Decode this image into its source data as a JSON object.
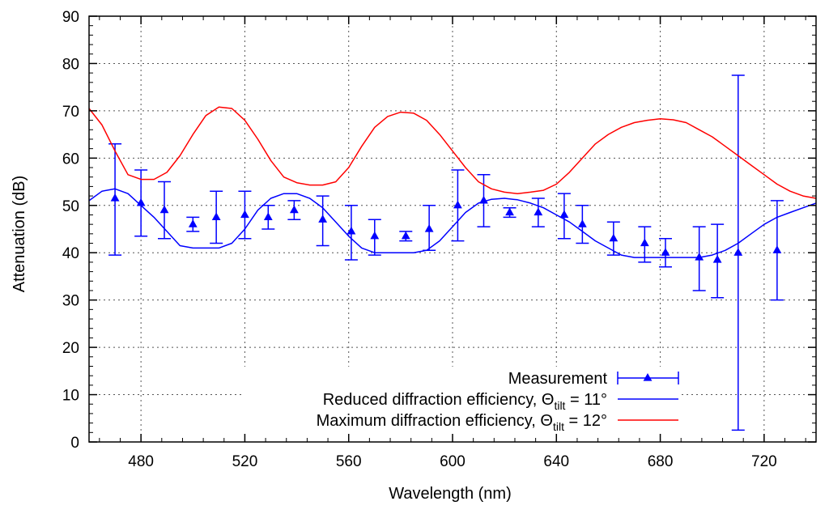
{
  "chart_data": {
    "type": "line",
    "title": "",
    "xlabel": "Wavelength (nm)",
    "ylabel": "Attenuation (dB)",
    "xlim": [
      460,
      740
    ],
    "ylim": [
      0,
      90
    ],
    "x_ticks": [
      480,
      520,
      560,
      600,
      640,
      680,
      720
    ],
    "y_ticks": [
      0,
      10,
      20,
      30,
      40,
      50,
      60,
      70,
      80,
      90
    ],
    "grid": true,
    "legend_position": "bottom-right",
    "series": [
      {
        "name": "Measurement",
        "kind": "errorbar",
        "color": "#0000ff",
        "marker": "triangle",
        "points": [
          {
            "x": 470,
            "y": 51.5,
            "low": 39.5,
            "high": 63.0
          },
          {
            "x": 480,
            "y": 50.5,
            "low": 43.5,
            "high": 57.5
          },
          {
            "x": 489,
            "y": 49.0,
            "low": 43.0,
            "high": 55.0
          },
          {
            "x": 500,
            "y": 46.0,
            "low": 44.5,
            "high": 47.5
          },
          {
            "x": 509,
            "y": 47.5,
            "low": 42.0,
            "high": 53.0
          },
          {
            "x": 520,
            "y": 48.0,
            "low": 43.0,
            "high": 53.0
          },
          {
            "x": 529,
            "y": 47.5,
            "low": 45.0,
            "high": 50.0
          },
          {
            "x": 539,
            "y": 49.0,
            "low": 47.0,
            "high": 51.0
          },
          {
            "x": 550,
            "y": 47.0,
            "low": 41.5,
            "high": 52.0
          },
          {
            "x": 561,
            "y": 44.5,
            "low": 38.5,
            "high": 50.0
          },
          {
            "x": 570,
            "y": 43.5,
            "low": 39.5,
            "high": 47.0
          },
          {
            "x": 582,
            "y": 43.5,
            "low": 42.5,
            "high": 44.5
          },
          {
            "x": 591,
            "y": 45.0,
            "low": 40.5,
            "high": 50.0
          },
          {
            "x": 602,
            "y": 50.0,
            "low": 42.5,
            "high": 57.5
          },
          {
            "x": 612,
            "y": 51.0,
            "low": 45.5,
            "high": 56.5
          },
          {
            "x": 622,
            "y": 48.5,
            "low": 47.5,
            "high": 49.5
          },
          {
            "x": 633,
            "y": 48.5,
            "low": 45.5,
            "high": 51.5
          },
          {
            "x": 643,
            "y": 48.0,
            "low": 43.0,
            "high": 52.5
          },
          {
            "x": 650,
            "y": 46.0,
            "low": 42.0,
            "high": 50.0
          },
          {
            "x": 662,
            "y": 43.0,
            "low": 39.5,
            "high": 46.5
          },
          {
            "x": 674,
            "y": 42.0,
            "low": 38.0,
            "high": 45.5
          },
          {
            "x": 682,
            "y": 40.0,
            "low": 37.0,
            "high": 43.0
          },
          {
            "x": 695,
            "y": 39.0,
            "low": 32.0,
            "high": 45.5
          },
          {
            "x": 702,
            "y": 38.5,
            "low": 30.5,
            "high": 46.0
          },
          {
            "x": 710,
            "y": 40.0,
            "low": 2.5,
            "high": 77.5
          },
          {
            "x": 725,
            "y": 40.5,
            "low": 30.0,
            "high": 51.0
          }
        ]
      },
      {
        "name": "Reduced diffraction efficiency, Θtilt = 11°",
        "kind": "line",
        "color": "#0000ff",
        "x": [
          460,
          465,
          470,
          475,
          480,
          485,
          490,
          495,
          500,
          505,
          510,
          515,
          520,
          525,
          530,
          535,
          540,
          545,
          550,
          555,
          560,
          565,
          570,
          575,
          580,
          585,
          590,
          595,
          600,
          605,
          610,
          615,
          620,
          625,
          630,
          635,
          640,
          645,
          650,
          655,
          660,
          665,
          670,
          675,
          680,
          685,
          690,
          695,
          700,
          705,
          710,
          715,
          720,
          725,
          730,
          735,
          740
        ],
        "y": [
          51.0,
          53.0,
          53.5,
          52.5,
          50.0,
          47.5,
          44.5,
          41.5,
          41.0,
          41.0,
          41.0,
          42.0,
          45.0,
          49.0,
          51.5,
          52.5,
          52.5,
          51.5,
          49.5,
          46.5,
          43.5,
          41.0,
          40.0,
          40.0,
          40.0,
          40.0,
          40.5,
          42.5,
          45.5,
          48.5,
          50.5,
          51.3,
          51.5,
          51.2,
          50.5,
          49.5,
          48.0,
          46.5,
          44.5,
          42.5,
          41.0,
          39.5,
          39.0,
          39.0,
          39.0,
          39.0,
          39.0,
          39.0,
          39.5,
          40.5,
          42.0,
          44.0,
          46.0,
          47.5,
          48.5,
          49.5,
          50.5
        ]
      },
      {
        "name": "Maximum diffraction efficiency, Θtilt = 12°",
        "kind": "line",
        "color": "#ff0000",
        "x": [
          460,
          465,
          470,
          475,
          480,
          485,
          490,
          495,
          500,
          505,
          510,
          515,
          520,
          525,
          530,
          535,
          540,
          545,
          550,
          555,
          560,
          565,
          570,
          575,
          580,
          585,
          590,
          595,
          600,
          605,
          610,
          615,
          620,
          625,
          630,
          635,
          640,
          645,
          650,
          655,
          660,
          665,
          670,
          675,
          680,
          685,
          690,
          695,
          700,
          705,
          710,
          715,
          720,
          725,
          730,
          735,
          740
        ],
        "y": [
          70.5,
          67.0,
          61.5,
          56.5,
          55.5,
          55.5,
          57.0,
          60.5,
          65.0,
          69.0,
          70.8,
          70.5,
          68.0,
          64.0,
          59.5,
          56.0,
          54.8,
          54.3,
          54.3,
          55.0,
          58.0,
          62.5,
          66.5,
          68.8,
          69.7,
          69.5,
          68.0,
          65.0,
          61.5,
          58.0,
          55.0,
          53.5,
          52.8,
          52.5,
          52.8,
          53.2,
          54.5,
          57.0,
          60.0,
          63.0,
          65.0,
          66.5,
          67.5,
          68.0,
          68.3,
          68.1,
          67.5,
          66.0,
          64.5,
          62.5,
          60.5,
          58.5,
          56.5,
          54.5,
          53.0,
          52.0,
          51.5
        ]
      }
    ],
    "legend": {
      "measurement_label": "Measurement",
      "reduced_prefix": "Reduced diffraction efficiency, Θ",
      "reduced_sub": "tilt",
      "reduced_suffix": " = 11°",
      "maximum_prefix": "Maximum diffraction efficiency, Θ",
      "maximum_sub": "tilt",
      "maximum_suffix": " = 12°"
    }
  }
}
